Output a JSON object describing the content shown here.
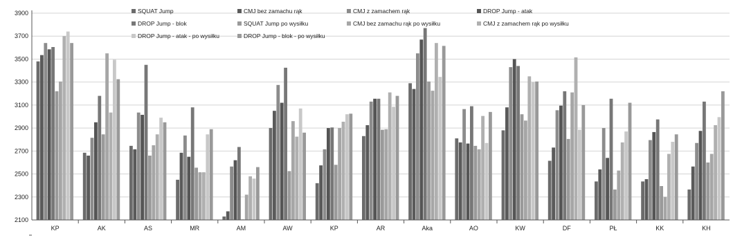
{
  "chart_data": {
    "type": "bar",
    "categories": [
      "KP",
      "AK",
      "AS",
      "MR",
      "AM",
      "AW",
      "KP",
      "AR",
      "Aka",
      "AO",
      "KW",
      "DF",
      "PŁ",
      "KK",
      "KH"
    ],
    "ylim": [
      2100,
      3900
    ],
    "yticks": [
      2100,
      2300,
      2500,
      2700,
      2900,
      3100,
      3300,
      3500,
      3700,
      3900
    ],
    "grid": true,
    "legend_position": "top",
    "series": [
      {
        "name": "SQUAT Jump",
        "color": "#6b6b6b",
        "values": [
          3480,
          2685,
          2745,
          2450,
          2130,
          2900,
          2420,
          2830,
          3290,
          2810,
          2880,
          2615,
          2435,
          2435,
          2365
        ]
      },
      {
        "name": "CMJ bez zamachu  rąk",
        "color": "#5a5a5a",
        "values": [
          3535,
          2660,
          2715,
          2685,
          2175,
          3050,
          2575,
          2925,
          3240,
          2775,
          3080,
          2730,
          2540,
          2455,
          2565
        ]
      },
      {
        "name": "CMJ z zamachem  rąk",
        "color": "#8c8c8c",
        "values": [
          3640,
          2815,
          3035,
          2835,
          2565,
          3275,
          2715,
          3130,
          3550,
          3065,
          3430,
          3055,
          2900,
          2795,
          2770
        ]
      },
      {
        "name": "DROP Jump - atak",
        "color": "#555555",
        "values": [
          3585,
          2950,
          3015,
          2650,
          2620,
          3120,
          2900,
          3155,
          3670,
          2765,
          3500,
          3095,
          2640,
          2865,
          2875
        ]
      },
      {
        "name": "DROP Jump - blok",
        "color": "#777777",
        "values": [
          3605,
          3180,
          3450,
          3080,
          2735,
          3425,
          2905,
          3155,
          3770,
          3090,
          3440,
          3220,
          3155,
          2975,
          3130
        ]
      },
      {
        "name": "SQUAT Jump po wysiłku",
        "color": "#9a9a9a",
        "values": [
          3220,
          2845,
          2660,
          2555,
          2105,
          2525,
          2580,
          2885,
          3305,
          2745,
          3020,
          2805,
          2365,
          2395,
          2600
        ]
      },
      {
        "name": "CMJ bez zamachu  rąk po wysiłku",
        "color": "#a6a6a6",
        "values": [
          3305,
          3550,
          2750,
          2515,
          2320,
          2960,
          2900,
          2890,
          3225,
          2715,
          2965,
          3210,
          2530,
          2300,
          2675
        ]
      },
      {
        "name": "CMJ z zamachem  rąk po wysiłku",
        "color": "#b0b0b0",
        "values": [
          3700,
          3035,
          2845,
          2515,
          2480,
          2825,
          2955,
          3210,
          3640,
          3005,
          3350,
          3515,
          2775,
          2675,
          2925
        ]
      },
      {
        "name": "DROP Jump - atak - po wysiłku",
        "color": "#c8c8c8",
        "values": [
          3740,
          3495,
          2990,
          2845,
          2460,
          3070,
          3020,
          3085,
          3345,
          2770,
          3300,
          2885,
          2870,
          2780,
          2995
        ]
      },
      {
        "name": "DROP Jump - blok - po wysiłku",
        "color": "#999999",
        "values": [
          3640,
          3325,
          2950,
          2890,
          2560,
          2860,
          3025,
          3180,
          3615,
          3040,
          3305,
          3100,
          3120,
          2845,
          3220
        ]
      }
    ]
  }
}
